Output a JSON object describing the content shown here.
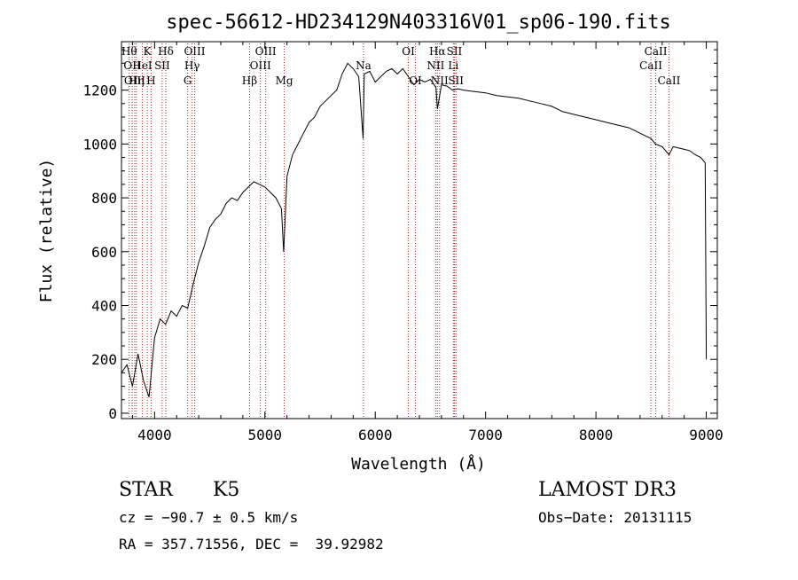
{
  "chart_data": {
    "type": "line",
    "title": "spec-56612-HD234129N403316V01_sp06-190.fits",
    "xlabel": "Wavelength (Å)",
    "ylabel": "Flux (relative)",
    "xlim": [
      3700,
      9100
    ],
    "ylim": [
      -20,
      1380
    ],
    "x_ticks": [
      4000,
      5000,
      6000,
      7000,
      8000,
      9000
    ],
    "x_tick_labels": [
      "4000",
      "5000",
      "6000",
      "7000",
      "8000",
      "9000"
    ],
    "y_ticks": [
      0,
      200,
      400,
      600,
      800,
      1000,
      1200
    ],
    "y_tick_labels": [
      "0",
      "200",
      "400",
      "600",
      "800",
      "1000",
      "1200"
    ],
    "grid": false,
    "series": [
      {
        "x": [
          3700,
          3750,
          3800,
          3850,
          3900,
          3950,
          4000,
          4050,
          4100,
          4150,
          4200,
          4250,
          4300,
          4350,
          4400,
          4450,
          4500,
          4550,
          4600,
          4650,
          4700,
          4750,
          4800,
          4850,
          4900,
          4950,
          5000,
          5050,
          5100,
          5150,
          5170,
          5200,
          5250,
          5300,
          5350,
          5400,
          5450,
          5500,
          5550,
          5600,
          5650,
          5700,
          5750,
          5800,
          5850,
          5890,
          5900,
          5950,
          6000,
          6050,
          6100,
          6150,
          6200,
          6250,
          6300,
          6350,
          6400,
          6450,
          6500,
          6550,
          6563,
          6600,
          6650,
          6700,
          6750,
          6800,
          6900,
          7000,
          7100,
          7200,
          7300,
          7400,
          7500,
          7600,
          7700,
          7800,
          7900,
          8000,
          8100,
          8200,
          8300,
          8400,
          8500,
          8540,
          8600,
          8662,
          8700,
          8750,
          8800,
          8850,
          8900,
          8950,
          8990,
          9000
        ],
        "y": [
          150,
          180,
          100,
          220,
          120,
          60,
          280,
          350,
          330,
          380,
          360,
          400,
          390,
          480,
          560,
          620,
          690,
          720,
          740,
          780,
          800,
          790,
          820,
          840,
          860,
          850,
          840,
          820,
          800,
          760,
          600,
          880,
          960,
          1000,
          1040,
          1080,
          1100,
          1140,
          1160,
          1180,
          1200,
          1260,
          1300,
          1280,
          1250,
          1020,
          1260,
          1270,
          1230,
          1250,
          1270,
          1280,
          1260,
          1280,
          1250,
          1220,
          1240,
          1230,
          1240,
          1210,
          1130,
          1220,
          1215,
          1200,
          1205,
          1200,
          1195,
          1190,
          1180,
          1175,
          1170,
          1160,
          1150,
          1140,
          1120,
          1110,
          1100,
          1090,
          1080,
          1070,
          1060,
          1040,
          1020,
          1000,
          990,
          960,
          990,
          985,
          980,
          975,
          960,
          950,
          930,
          200
        ]
      }
    ],
    "lines": [
      {
        "x": 3770,
        "label": "Hθ",
        "row": 0
      },
      {
        "x": 3797,
        "label": "OII",
        "row": 1
      },
      {
        "x": 3820,
        "label": "OIII",
        "row": 2
      },
      {
        "x": 3835,
        "label": "Hη",
        "row": 2
      },
      {
        "x": 3889,
        "label": "HeI",
        "row": 1
      },
      {
        "x": 3934,
        "label": "K",
        "row": 0
      },
      {
        "x": 3968,
        "label": "H",
        "row": 2
      },
      {
        "x": 4069,
        "label": "SII",
        "row": 1
      },
      {
        "x": 4102,
        "label": "Hδ",
        "row": 0
      },
      {
        "x": 4300,
        "label": "G",
        "row": 2
      },
      {
        "x": 4340,
        "label": "Hγ",
        "row": 1
      },
      {
        "x": 4363,
        "label": "OIII",
        "row": 0
      },
      {
        "x": 4861,
        "label": "Hβ",
        "row": 2
      },
      {
        "x": 4959,
        "label": "OIII",
        "row": 1
      },
      {
        "x": 5007,
        "label": "OIII",
        "row": 0
      },
      {
        "x": 5175,
        "label": "Mg",
        "row": 2
      },
      {
        "x": 5893,
        "label": "Na",
        "row": 1
      },
      {
        "x": 6300,
        "label": "OI",
        "row": 0
      },
      {
        "x": 6364,
        "label": "OI",
        "row": 2
      },
      {
        "x": 6548,
        "label": "NII",
        "row": 1
      },
      {
        "x": 6563,
        "label": "Hα",
        "row": 0
      },
      {
        "x": 6583,
        "label": "NII",
        "row": 2
      },
      {
        "x": 6708,
        "label": "Li",
        "row": 1
      },
      {
        "x": 6717,
        "label": "SII",
        "row": 0
      },
      {
        "x": 6731,
        "label": "SII",
        "row": 2
      },
      {
        "x": 8498,
        "label": "CaII",
        "row": 1
      },
      {
        "x": 8542,
        "label": "CaII",
        "row": 0
      },
      {
        "x": 8662,
        "label": "CaII",
        "row": 2
      }
    ]
  },
  "footer": {
    "class_label": "STAR",
    "subclass": "K5",
    "survey": "LAMOST DR3",
    "cz": "cz = −90.7 ± 0.5 km/s",
    "obs_date": "Obs−Date: 20131115",
    "coords": "RA = 357.71556, DEC =  39.92982"
  }
}
